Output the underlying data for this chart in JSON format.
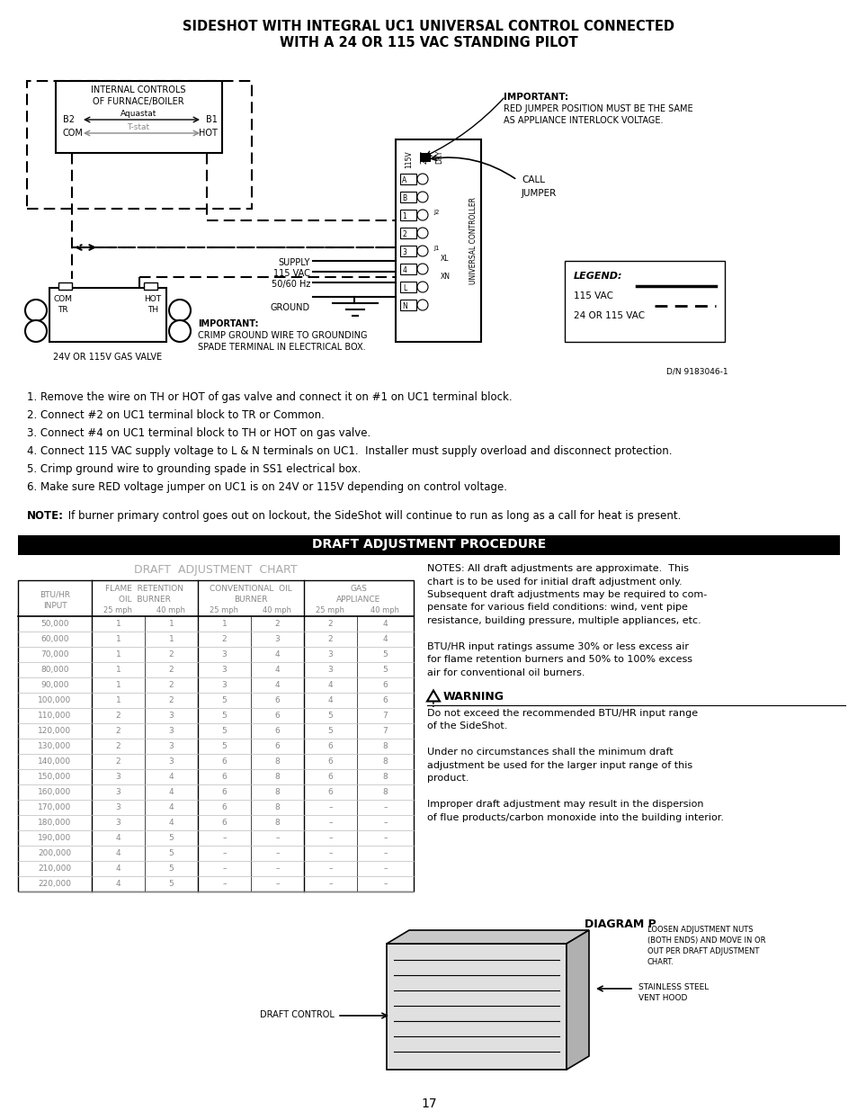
{
  "title_line1": "SIDESHOT WITH INTEGRAL UC1 UNIVERSAL CONTROL CONNECTED",
  "title_line2": "WITH A 24 OR 115 VAC STANDING PILOT",
  "steps": [
    "1. Remove the wire on TH or HOT of gas valve and connect it on #1 on UC1 terminal block.",
    "2. Connect #2 on UC1 terminal block to TR or Common.",
    "3. Connect #4 on UC1 terminal block to TH or HOT on gas valve.",
    "4. Connect 115 VAC supply voltage to L & N terminals on UC1.  Installer must supply overload and disconnect protection.",
    "5. Crimp ground wire to grounding spade in SS1 electrical box.",
    "6. Make sure RED voltage jumper on UC1 is on 24V or 115V depending on control voltage."
  ],
  "note_bold": "NOTE:",
  "note_text": " If burner primary control goes out on lockout, the SideShot will continue to run as long as a call for heat is present.",
  "draft_header": "DRAFT ADJUSTMENT PROCEDURE",
  "draft_chart_title": "DRAFT  ADJUSTMENT  CHART",
  "draft_table_data": [
    [
      "50,000",
      "1",
      "1",
      "1",
      "2",
      "2",
      "4"
    ],
    [
      "60,000",
      "1",
      "1",
      "2",
      "3",
      "2",
      "4"
    ],
    [
      "70,000",
      "1",
      "2",
      "3",
      "4",
      "3",
      "5"
    ],
    [
      "80,000",
      "1",
      "2",
      "3",
      "4",
      "3",
      "5"
    ],
    [
      "90,000",
      "1",
      "2",
      "3",
      "4",
      "4",
      "6"
    ],
    [
      "100,000",
      "1",
      "2",
      "5",
      "6",
      "4",
      "6"
    ],
    [
      "110,000",
      "2",
      "3",
      "5",
      "6",
      "5",
      "7"
    ],
    [
      "120,000",
      "2",
      "3",
      "5",
      "6",
      "5",
      "7"
    ],
    [
      "130,000",
      "2",
      "3",
      "5",
      "6",
      "6",
      "8"
    ],
    [
      "140,000",
      "2",
      "3",
      "6",
      "8",
      "6",
      "8"
    ],
    [
      "150,000",
      "3",
      "4",
      "6",
      "8",
      "6",
      "8"
    ],
    [
      "160,000",
      "3",
      "4",
      "6",
      "8",
      "6",
      "8"
    ],
    [
      "170,000",
      "3",
      "4",
      "6",
      "8",
      "–",
      "–"
    ],
    [
      "180,000",
      "3",
      "4",
      "6",
      "8",
      "–",
      "–"
    ],
    [
      "190,000",
      "4",
      "5",
      "–",
      "–",
      "–",
      "–"
    ],
    [
      "200,000",
      "4",
      "5",
      "–",
      "–",
      "–",
      "–"
    ],
    [
      "210,000",
      "4",
      "5",
      "–",
      "–",
      "–",
      "–"
    ],
    [
      "220,000",
      "4",
      "5",
      "–",
      "–",
      "–",
      "–"
    ]
  ],
  "notes_right": [
    "NOTES: All draft adjustments are approximate.  This",
    "chart is to be used for initial draft adjustment only.",
    "Subsequent draft adjustments may be required to com-",
    "pensate for various field conditions: wind, vent pipe",
    "resistance, building pressure, multiple appliances, etc.",
    "",
    "BTU/HR input ratings assume 30% or less excess air",
    "for flame retention burners and 50% to 100% excess",
    "air for conventional oil burners."
  ],
  "warning_text": [
    "Do not exceed the recommended BTU/HR input range",
    "of the SideShot.",
    "",
    "Under no circumstances shall the minimum draft",
    "adjustment be used for the larger input range of this",
    "product.",
    "",
    "Improper draft adjustment may result in the dispersion",
    "of flue products/carbon monoxide into the building interior."
  ],
  "diagram_label": "DIAGRAM P",
  "diagram_notes": [
    "LOOSEN ADJUSTMENT NUTS",
    "(BOTH ENDS) AND MOVE IN OR",
    "OUT PER DRAFT ADJUSTMENT",
    "CHART."
  ],
  "draft_control_label": "DRAFT CONTROL",
  "stainless_label": [
    "STAINLESS STEEL",
    "VENT HOOD"
  ],
  "page_number": "17",
  "background_color": "#ffffff"
}
